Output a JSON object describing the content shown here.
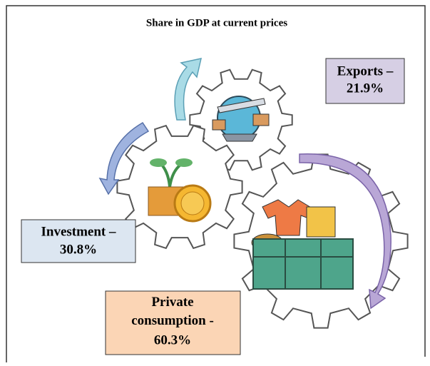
{
  "header": {
    "title": "Share in GDP at current prices"
  },
  "boxes": [
    {
      "label": "Exports –",
      "value": "21.9%"
    },
    {
      "label": "Investment –",
      "value": "30.8%"
    },
    {
      "label": "Private consumption -",
      "value": "60.3%"
    }
  ]
}
